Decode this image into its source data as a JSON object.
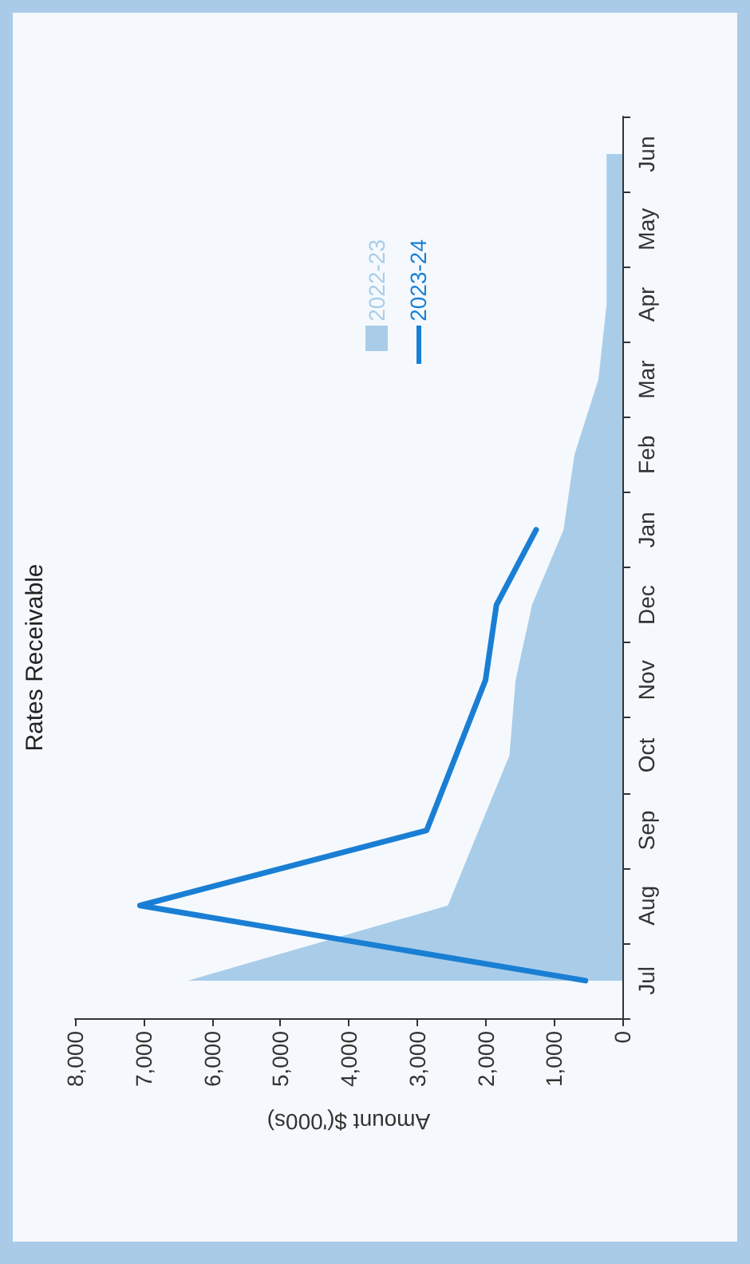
{
  "chart_data": {
    "type": "line",
    "title": "Rates Receivable",
    "xlabel": "Amount $('000s)",
    "orientation": "horizontal",
    "categories": [
      "Jun",
      "May",
      "Apr",
      "Mar",
      "Feb",
      "Jan",
      "Dec",
      "Nov",
      "Oct",
      "Sep",
      "Aug",
      "Jul"
    ],
    "series": [
      {
        "name": "2022-23",
        "type": "area",
        "color": "#a9cde9",
        "values": [
          230,
          230,
          230,
          350,
          700,
          860,
          1320,
          1560,
          1650,
          2100,
          2550,
          6350
        ]
      },
      {
        "name": "2023-24",
        "type": "line",
        "color": "#1a7fd4",
        "values": [
          null,
          null,
          null,
          null,
          null,
          1260,
          1840,
          2000,
          2430,
          2860,
          7050,
          540
        ]
      }
    ],
    "xlim": [
      8000,
      0
    ],
    "xticks": [
      {
        "value": 8000,
        "label": "8,000"
      },
      {
        "value": 7000,
        "label": "7,000"
      },
      {
        "value": 6000,
        "label": "6,000"
      },
      {
        "value": 5000,
        "label": "5,000"
      },
      {
        "value": 4000,
        "label": "4,000"
      },
      {
        "value": 3000,
        "label": "3,000"
      },
      {
        "value": 2000,
        "label": "2,000"
      },
      {
        "value": 1000,
        "label": "1,000"
      },
      0
    ],
    "grid": false,
    "legend": "top right",
    "marker": "none",
    "line_style": "solid"
  }
}
